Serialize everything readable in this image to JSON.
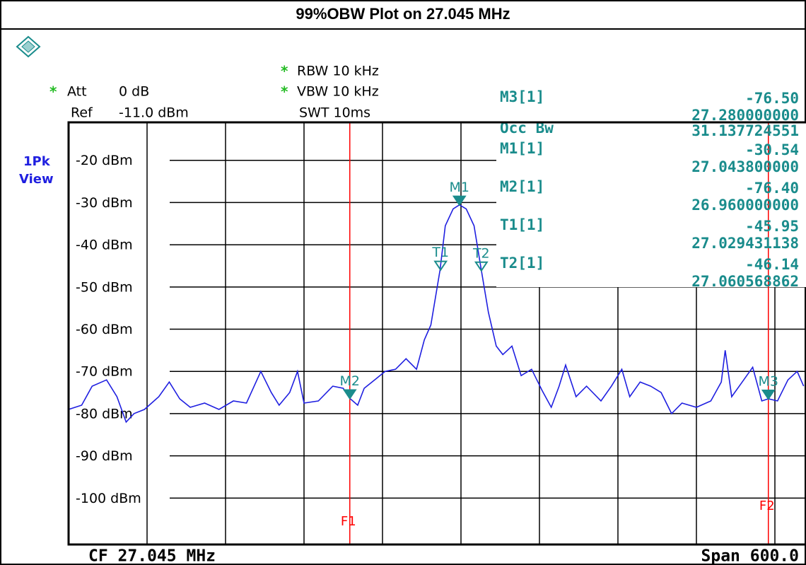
{
  "chart_data": {
    "type": "line",
    "title": "99%OBW Plot on 27.045 MHz",
    "settings": {
      "flag": "*",
      "rbw": "RBW 10 kHz",
      "att": "Att",
      "att_value": "0 dB",
      "vbw": "VBW 10 kHz",
      "ref": "Ref",
      "ref_value": "-11.0 dBm",
      "swt": "SWT 10ms",
      "trace_mode": "1Pk",
      "trace_view": "View"
    },
    "center": "CF 27.045 MHz",
    "span": "Span 600.0",
    "occ_bw": {
      "label": "Occ Bw",
      "value": "31.137724551"
    },
    "x": [
      26.745,
      26.755,
      26.763,
      26.774,
      26.782,
      26.789,
      26.795,
      26.803,
      26.814,
      26.822,
      26.83,
      26.838,
      26.849,
      26.86,
      26.871,
      26.881,
      26.892,
      26.9,
      26.906,
      26.914,
      26.92,
      26.925,
      26.936,
      26.947,
      26.955,
      26.96,
      26.966,
      26.971,
      26.979,
      26.987,
      26.995,
      27.003,
      27.011,
      27.017,
      27.022,
      27.029,
      27.033,
      27.039,
      27.0438,
      27.049,
      27.055,
      27.0606,
      27.066,
      27.072,
      27.077,
      27.084,
      27.091,
      27.099,
      27.107,
      27.114,
      27.12,
      27.125,
      27.133,
      27.141,
      27.152,
      27.16,
      27.168,
      27.174,
      27.182,
      27.19,
      27.198,
      27.206,
      27.214,
      27.225,
      27.236,
      27.244,
      27.247,
      27.252,
      27.26,
      27.268,
      27.275,
      27.28,
      27.287,
      27.295,
      27.302,
      27.307
    ],
    "series": [
      {
        "color": "#1f1fe0",
        "values": [
          -79,
          -78,
          -73.5,
          -72,
          -76,
          -82,
          -80,
          -79,
          -76,
          -72.5,
          -76.5,
          -78.5,
          -77.5,
          -79,
          -77,
          -77.5,
          -70,
          -75,
          -78,
          -75,
          -70,
          -77.5,
          -77,
          -73.5,
          -74,
          -76.4,
          -78,
          -74,
          -72,
          -70,
          -69.5,
          -67,
          -69.5,
          -62.5,
          -59,
          -45.95,
          -35.5,
          -31.5,
          -30.54,
          -31.5,
          -35.5,
          -46.14,
          -56,
          -64,
          -66,
          -64,
          -71,
          -69.5,
          -74.5,
          -78.5,
          -73.5,
          -68.5,
          -76,
          -73.5,
          -77,
          -73.5,
          -69.5,
          -76,
          -72.5,
          -73.5,
          -75,
          -80,
          -77.5,
          -78.5,
          -77,
          -72.5,
          -65,
          -76,
          -72.5,
          -69,
          -77,
          -76.5,
          -77,
          -72,
          -70,
          -73.5
        ]
      }
    ],
    "xlim": [
      26.745,
      27.345
    ],
    "ylim": [
      -111,
      -11
    ],
    "yticks": [
      {
        "value": -20,
        "label": "-20 dBm"
      },
      {
        "value": -30,
        "label": "-30 dBm"
      },
      {
        "value": -40,
        "label": "-40 dBm"
      },
      {
        "value": -50,
        "label": "-50 dBm"
      },
      {
        "value": -60,
        "label": "-60 dBm"
      },
      {
        "value": -70,
        "label": "-70 dBm"
      },
      {
        "value": -80,
        "label": "-80 dBm"
      },
      {
        "value": -90,
        "label": "-90 dBm"
      },
      {
        "value": -100,
        "label": "-100 dBm"
      }
    ],
    "grid": true,
    "marker_color": "#1a8c8c",
    "markers": [
      {
        "name": "M3[1]",
        "label": "M3",
        "style": "filled",
        "x": 27.28,
        "x_label": "27.280000000",
        "value": -76.5,
        "value_label": "-76.50"
      },
      {
        "name": "M1[1]",
        "label": "M1",
        "style": "filled",
        "x": 27.0438,
        "x_label": "27.043800000",
        "value": -30.54,
        "value_label": "-30.54"
      },
      {
        "name": "M2[1]",
        "label": "M2",
        "style": "filled",
        "x": 26.96,
        "x_label": "26.960000000",
        "value": -76.4,
        "value_label": "-76.40"
      },
      {
        "name": "T1[1]",
        "label": "T1",
        "style": "open",
        "x": 27.029431138,
        "x_label": "27.029431138",
        "value": -45.95,
        "value_label": "-45.95"
      },
      {
        "name": "T2[1]",
        "label": "T2",
        "style": "open",
        "x": 27.060568862,
        "x_label": "27.060568862",
        "value": -46.14,
        "value_label": "-46.14"
      }
    ],
    "f_lines": [
      {
        "label": "F1",
        "x": 26.96,
        "color": "#ff0000"
      },
      {
        "label": "F2",
        "x": 27.28,
        "color": "#ff0000"
      }
    ]
  }
}
